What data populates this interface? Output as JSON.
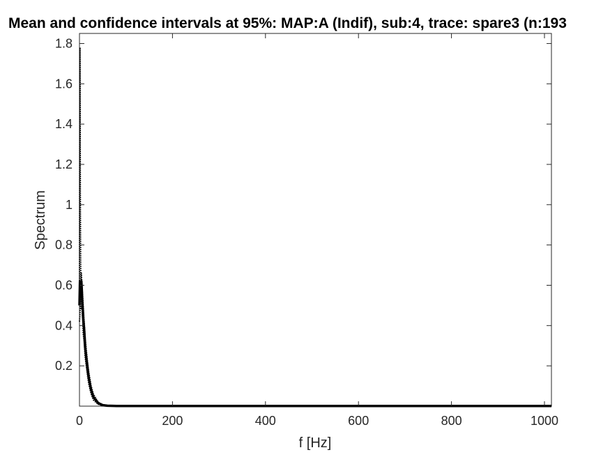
{
  "chart_data": {
    "type": "line",
    "title": "Mean and confidence intervals at 95%: MAP:A (Indif), sub:4, trace: spare3 (n:193",
    "xlabel": "f [Hz]",
    "ylabel": "Spectrum",
    "xlim": [
      0,
      1015
    ],
    "ylim": [
      0,
      1.85
    ],
    "xticks": [
      0,
      200,
      400,
      600,
      800,
      1000
    ],
    "xtick_labels": [
      "0",
      "200",
      "400",
      "600",
      "800",
      "1000"
    ],
    "yticks": [
      0.2,
      0.4,
      0.6,
      0.8,
      1,
      1.2,
      1.4,
      1.6,
      1.8
    ],
    "ytick_labels": [
      "0.2",
      "0.4",
      "0.6",
      "0.8",
      "1",
      "1.2",
      "1.4",
      "1.6",
      "1.8"
    ],
    "grid": false,
    "series": [
      {
        "role": "upper-ci",
        "style": "dotted",
        "x": [
          0,
          1,
          2,
          3,
          4,
          5,
          6,
          7,
          8,
          10,
          12,
          15,
          20,
          25,
          30,
          40,
          50,
          60,
          80,
          100,
          200,
          400,
          600,
          800,
          1015
        ],
        "y": [
          0.55,
          1.78,
          1.0,
          0.6,
          0.66,
          0.62,
          0.58,
          0.54,
          0.5,
          0.42,
          0.35,
          0.27,
          0.17,
          0.1,
          0.06,
          0.02,
          0.008,
          0.003,
          0.002,
          0.002,
          0.002,
          0.002,
          0.002,
          0.002,
          0.002
        ]
      },
      {
        "role": "mean",
        "style": "solid",
        "x": [
          0,
          1,
          2,
          3,
          4,
          5,
          6,
          7,
          8,
          10,
          12,
          15,
          20,
          25,
          30,
          40,
          50,
          60,
          80,
          100,
          200,
          400,
          600,
          800,
          1015
        ],
        "y": [
          0.5,
          0.62,
          0.6,
          0.55,
          0.62,
          0.58,
          0.52,
          0.48,
          0.44,
          0.38,
          0.3,
          0.23,
          0.14,
          0.08,
          0.045,
          0.015,
          0.005,
          0.002,
          0.001,
          0.001,
          0.001,
          0.001,
          0.001,
          0.001,
          0.001
        ]
      },
      {
        "role": "lower-ci",
        "style": "dotted",
        "x": [
          0,
          1,
          2,
          3,
          4,
          5,
          6,
          7,
          8,
          10,
          12,
          15,
          20,
          25,
          30,
          40,
          50,
          60,
          80,
          100,
          200,
          400,
          600,
          800,
          1015
        ],
        "y": [
          0.42,
          0.45,
          0.5,
          0.48,
          0.55,
          0.52,
          0.46,
          0.42,
          0.36,
          0.32,
          0.25,
          0.19,
          0.11,
          0.06,
          0.03,
          0.01,
          0.003,
          0.001,
          0.0,
          0.0,
          0.0,
          0.0,
          0.0,
          0.0,
          0.0
        ]
      }
    ]
  }
}
